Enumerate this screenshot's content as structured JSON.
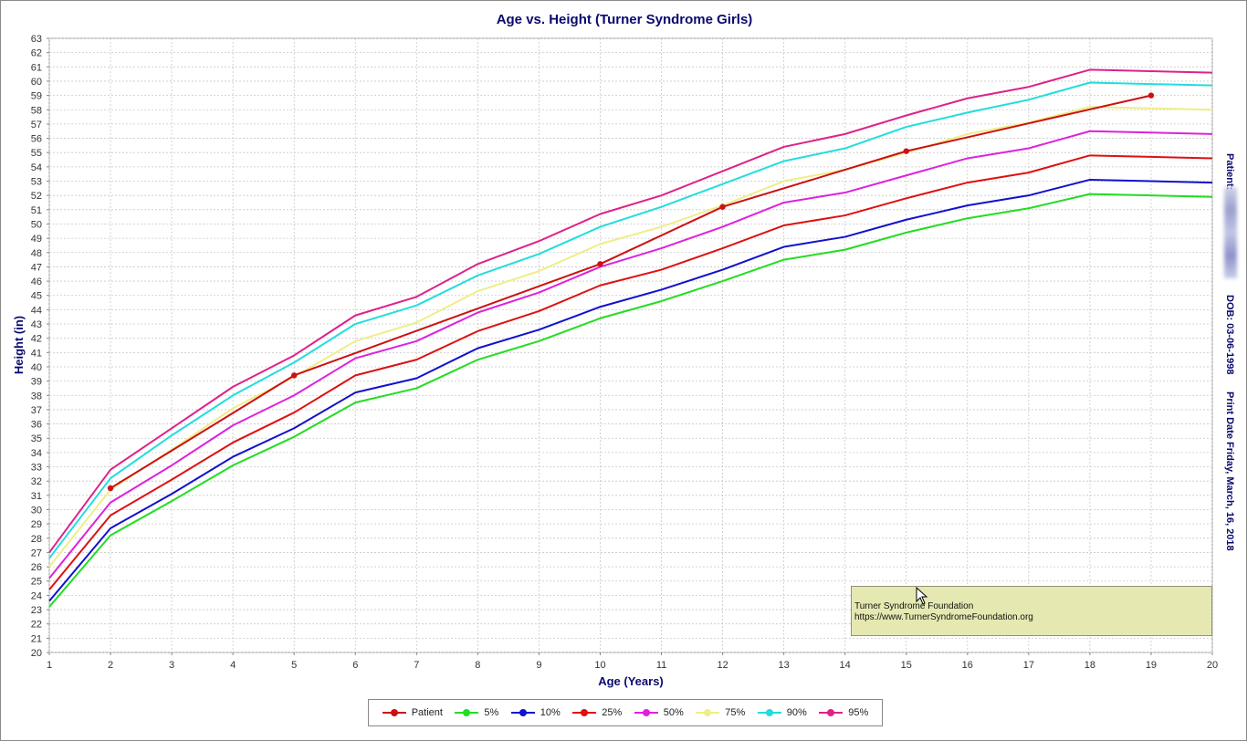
{
  "chart_data": {
    "type": "line",
    "title": "Age vs. Height (Turner Syndrome Girls)",
    "xlabel": "Age (Years)",
    "ylabel": "Height (in)",
    "xlim": [
      1,
      20
    ],
    "ylim": [
      20,
      63
    ],
    "x_ticks": [
      1,
      2,
      3,
      4,
      5,
      6,
      7,
      8,
      9,
      10,
      11,
      12,
      13,
      14,
      15,
      16,
      17,
      18,
      19,
      20
    ],
    "y_ticks": [
      20,
      21,
      22,
      23,
      24,
      25,
      26,
      27,
      28,
      29,
      30,
      31,
      32,
      33,
      34,
      35,
      36,
      37,
      38,
      39,
      40,
      41,
      42,
      43,
      44,
      45,
      46,
      47,
      48,
      49,
      50,
      51,
      52,
      53,
      54,
      55,
      56,
      57,
      58,
      59,
      60,
      61,
      62,
      63
    ],
    "grid": true,
    "legend_position": "bottom",
    "x": [
      1,
      2,
      3,
      4,
      5,
      6,
      7,
      8,
      9,
      10,
      11,
      12,
      13,
      14,
      15,
      16,
      17,
      18,
      19,
      20
    ],
    "series": [
      {
        "name": "5%",
        "color": "#22dd22",
        "values": [
          23.2,
          28.2,
          30.6,
          33.1,
          35.1,
          37.5,
          38.5,
          40.5,
          41.8,
          43.4,
          44.6,
          46.0,
          47.5,
          48.2,
          49.4,
          50.4,
          51.1,
          52.1,
          52.0,
          51.9
        ]
      },
      {
        "name": "10%",
        "color": "#1111cc",
        "values": [
          23.6,
          28.7,
          31.1,
          33.7,
          35.7,
          38.2,
          39.2,
          41.3,
          42.6,
          44.2,
          45.4,
          46.8,
          48.4,
          49.1,
          50.3,
          51.3,
          52.0,
          53.1,
          53.0,
          52.9
        ]
      },
      {
        "name": "25%",
        "color": "#dd1111",
        "values": [
          24.4,
          29.6,
          32.1,
          34.7,
          36.8,
          39.4,
          40.5,
          42.5,
          43.9,
          45.7,
          46.8,
          48.3,
          49.9,
          50.6,
          51.8,
          52.9,
          53.6,
          54.8,
          54.7,
          54.6
        ]
      },
      {
        "name": "50%",
        "color": "#dd22dd",
        "values": [
          25.2,
          30.5,
          33.1,
          35.9,
          38.0,
          40.6,
          41.8,
          43.8,
          45.2,
          47.0,
          48.3,
          49.8,
          51.5,
          52.2,
          53.4,
          54.6,
          55.3,
          56.5,
          56.4,
          56.3
        ]
      },
      {
        "name": "75%",
        "color": "#eeee88",
        "values": [
          26.0,
          31.4,
          34.2,
          37.1,
          39.3,
          41.8,
          43.1,
          45.3,
          46.7,
          48.6,
          49.8,
          51.3,
          53.0,
          53.8,
          55.0,
          56.3,
          57.1,
          58.2,
          58.1,
          58.0
        ]
      },
      {
        "name": "90%",
        "color": "#22dddd",
        "values": [
          26.6,
          32.2,
          35.2,
          38.0,
          40.3,
          43.0,
          44.3,
          46.4,
          47.9,
          49.8,
          51.2,
          52.8,
          54.4,
          55.3,
          56.8,
          57.8,
          58.7,
          59.9,
          59.8,
          59.7
        ]
      },
      {
        "name": "95%",
        "color": "#dd2288",
        "values": [
          27.0,
          32.8,
          35.7,
          38.6,
          40.8,
          43.6,
          44.9,
          47.2,
          48.8,
          50.7,
          52.0,
          53.7,
          55.4,
          56.3,
          57.6,
          58.8,
          59.6,
          60.8,
          60.7,
          60.6
        ]
      }
    ],
    "patient": {
      "name": "Patient",
      "color": "#cc1111",
      "x": [
        2,
        5,
        10,
        12,
        15,
        19
      ],
      "values": [
        31.5,
        39.4,
        47.2,
        51.2,
        55.1,
        59.0
      ]
    }
  },
  "side_info": {
    "patient_label": "Patient:",
    "dob": "DOB: 03-06-1998",
    "print_date": "Print Date Friday, March, 16, 2018"
  },
  "annotation": {
    "line1": "Turner Syndrome Foundation",
    "line2": "https://www.TurnerSyndromeFoundation.org"
  },
  "legend": {
    "items": [
      {
        "label": "Patient",
        "color": "#cc1111"
      },
      {
        "label": "5%",
        "color": "#22dd22"
      },
      {
        "label": "10%",
        "color": "#1111cc"
      },
      {
        "label": "25%",
        "color": "#dd1111"
      },
      {
        "label": "50%",
        "color": "#dd22dd"
      },
      {
        "label": "75%",
        "color": "#eeee88"
      },
      {
        "label": "90%",
        "color": "#22dddd"
      },
      {
        "label": "95%",
        "color": "#dd2288"
      }
    ]
  }
}
